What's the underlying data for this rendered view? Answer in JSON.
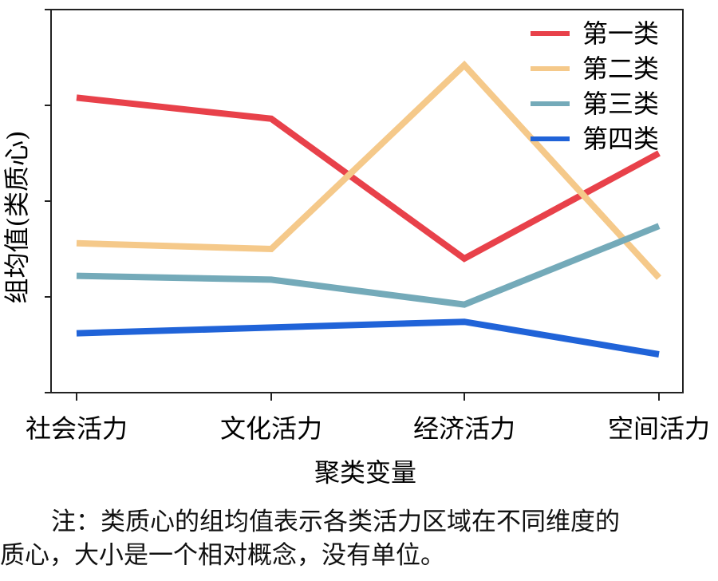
{
  "chart_data": {
    "type": "line",
    "xlabel": "聚类变量",
    "ylabel": "组均值(类质心)",
    "categories": [
      "社会活力",
      "文化活力",
      "经济活力",
      "空间活力"
    ],
    "ylim": [
      0,
      100
    ],
    "y_tick_labels_shown": false,
    "grid": false,
    "legend_position": "top-right",
    "series": [
      {
        "name": "第一类",
        "color": "#e8414a",
        "values": [
          77,
          71.5,
          35,
          62.5
        ]
      },
      {
        "name": "第二类",
        "color": "#f5c98a",
        "values": [
          39,
          37.5,
          85.5,
          30
        ]
      },
      {
        "name": "第三类",
        "color": "#74aab9",
        "values": [
          30.5,
          29.5,
          23,
          43.5
        ]
      },
      {
        "name": "第四类",
        "color": "#2063d8",
        "values": [
          15.5,
          17,
          18.5,
          10
        ]
      }
    ]
  },
  "note": {
    "line1": "注：类质心的组均值表示各类活力区域在不同维度的",
    "line2": "质心，大小是一个相对概念，没有单位。"
  }
}
